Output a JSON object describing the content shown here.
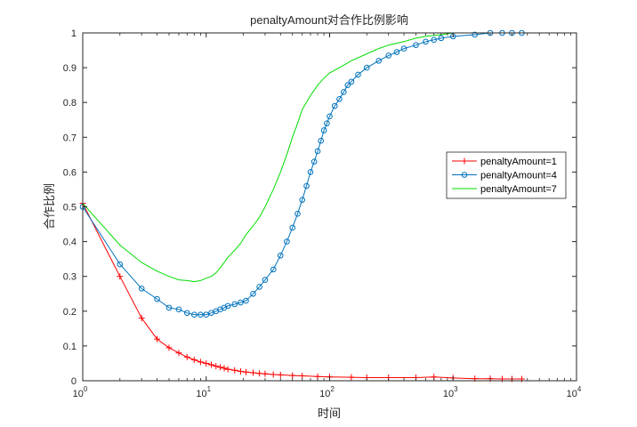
{
  "chart_data": {
    "type": "line",
    "title": "penaltyAmount对合作比例影响",
    "xlabel": "时间",
    "ylabel": "合作比例",
    "xscale": "log",
    "xlim": [
      1,
      10000
    ],
    "ylim": [
      0,
      1
    ],
    "x_ticks": [
      {
        "value": 1,
        "base": "10",
        "exp": "0"
      },
      {
        "value": 10,
        "base": "10",
        "exp": "1"
      },
      {
        "value": 100,
        "base": "10",
        "exp": "2"
      },
      {
        "value": 1000,
        "base": "10",
        "exp": "3"
      },
      {
        "value": 10000,
        "base": "10",
        "exp": "4"
      }
    ],
    "y_ticks": [
      "0",
      "0.1",
      "0.2",
      "0.3",
      "0.4",
      "0.5",
      "0.6",
      "0.7",
      "0.8",
      "0.9",
      "1"
    ],
    "grid": false,
    "legend_position": "right",
    "series": [
      {
        "name": "penaltyAmount=1",
        "color": "#ff0000",
        "marker": "plus",
        "x": [
          1,
          2,
          3,
          4,
          5,
          6,
          7,
          8,
          9,
          10,
          11,
          12,
          13,
          14,
          15,
          17,
          19,
          21,
          24,
          27,
          30,
          35,
          40,
          50,
          60,
          80,
          100,
          150,
          200,
          300,
          500,
          700,
          1000,
          1500,
          2000,
          2500,
          3000,
          3600
        ],
        "y": [
          0.51,
          0.3,
          0.18,
          0.12,
          0.095,
          0.08,
          0.068,
          0.06,
          0.054,
          0.05,
          0.046,
          0.042,
          0.039,
          0.036,
          0.033,
          0.03,
          0.027,
          0.025,
          0.023,
          0.021,
          0.02,
          0.018,
          0.017,
          0.015,
          0.014,
          0.012,
          0.011,
          0.01,
          0.009,
          0.009,
          0.009,
          0.011,
          0.008,
          0.006,
          0.006,
          0.005,
          0.005,
          0.005
        ]
      },
      {
        "name": "penaltyAmount=4",
        "color": "#0072bd",
        "marker": "circle",
        "x": [
          1,
          2,
          3,
          4,
          5,
          6,
          7,
          8,
          9,
          10,
          11,
          12,
          13,
          14,
          15,
          17,
          19,
          21,
          24,
          27,
          30,
          35,
          40,
          45,
          50,
          55,
          60,
          65,
          70,
          75,
          80,
          85,
          90,
          95,
          100,
          110,
          120,
          130,
          140,
          150,
          170,
          200,
          250,
          300,
          350,
          400,
          500,
          600,
          700,
          800,
          1000,
          1500,
          2000,
          2500,
          3000,
          3600
        ],
        "y": [
          0.5,
          0.335,
          0.265,
          0.235,
          0.21,
          0.205,
          0.195,
          0.19,
          0.19,
          0.19,
          0.195,
          0.2,
          0.205,
          0.21,
          0.215,
          0.22,
          0.225,
          0.23,
          0.25,
          0.27,
          0.29,
          0.32,
          0.36,
          0.4,
          0.44,
          0.48,
          0.52,
          0.56,
          0.6,
          0.63,
          0.66,
          0.69,
          0.72,
          0.74,
          0.76,
          0.79,
          0.81,
          0.83,
          0.85,
          0.86,
          0.88,
          0.9,
          0.92,
          0.935,
          0.945,
          0.955,
          0.965,
          0.975,
          0.98,
          0.985,
          0.99,
          0.995,
          1.0,
          1.0,
          1.0,
          1.0
        ]
      },
      {
        "name": "penaltyAmount=7",
        "color": "#00dd00",
        "marker": "none",
        "x": [
          1,
          2,
          3,
          4,
          5,
          6,
          7,
          8,
          9,
          10,
          11,
          12,
          13,
          14,
          15,
          17,
          19,
          21,
          24,
          27,
          30,
          35,
          40,
          45,
          50,
          55,
          60,
          70,
          80,
          90,
          100,
          120,
          150,
          200,
          250,
          300,
          400,
          500,
          600,
          700,
          800,
          1000,
          1500,
          2000,
          2500,
          3000,
          3600
        ],
        "y": [
          0.51,
          0.39,
          0.34,
          0.315,
          0.3,
          0.29,
          0.288,
          0.285,
          0.288,
          0.295,
          0.3,
          0.31,
          0.325,
          0.34,
          0.355,
          0.375,
          0.395,
          0.42,
          0.445,
          0.47,
          0.5,
          0.55,
          0.6,
          0.65,
          0.7,
          0.74,
          0.78,
          0.82,
          0.85,
          0.87,
          0.885,
          0.9,
          0.92,
          0.94,
          0.955,
          0.965,
          0.975,
          0.985,
          0.99,
          0.993,
          0.995,
          1.0,
          1.0,
          1.0,
          1.0,
          1.0,
          1.0
        ]
      }
    ]
  }
}
